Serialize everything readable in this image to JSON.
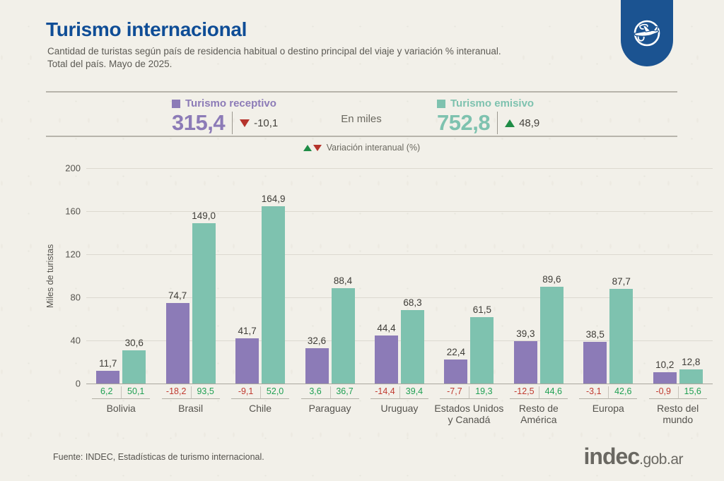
{
  "header": {
    "title": "Turismo internacional",
    "subtitle_line1": "Cantidad de turistas según país de residencia habitual o destino principal del viaje y variación % interanual.",
    "subtitle_line2": "Total del país. Mayo de 2025."
  },
  "summary": {
    "unit_label": "En miles",
    "receptivo": {
      "label": "Turismo receptivo",
      "value": "315,4",
      "variation": "-10,1",
      "direction": "down"
    },
    "emisivo": {
      "label": "Turismo emisivo",
      "value": "752,8",
      "variation": "48,9",
      "direction": "up"
    },
    "variation_note": "Variación interanual (%)"
  },
  "chart_data": {
    "type": "bar",
    "title": "Turismo internacional",
    "xlabel": "",
    "ylabel": "Miles de turistas",
    "ylim": [
      0,
      200
    ],
    "yticks": [
      0,
      40,
      80,
      120,
      160,
      200
    ],
    "grid": true,
    "legend_position": "top",
    "categories": [
      "Bolivia",
      "Brasil",
      "Chile",
      "Paraguay",
      "Uruguay",
      "Estados Unidos y Canadá",
      "Resto de América",
      "Europa",
      "Resto del mundo"
    ],
    "series": [
      {
        "name": "Turismo receptivo",
        "color": "#8c7bb7",
        "values": [
          11.7,
          74.7,
          41.7,
          32.6,
          44.4,
          22.4,
          39.3,
          38.5,
          10.2
        ],
        "value_labels": [
          "11,7",
          "74,7",
          "41,7",
          "32,6",
          "44,4",
          "22,4",
          "39,3",
          "38,5",
          "10,2"
        ],
        "variation_labels": [
          "6,2",
          "-18,2",
          "-9,1",
          "3,6",
          "-14,4",
          "-7,7",
          "-12,5",
          "-3,1",
          "-0,9"
        ]
      },
      {
        "name": "Turismo emisivo",
        "color": "#7ec2af",
        "values": [
          30.6,
          149.0,
          164.9,
          88.4,
          68.3,
          61.5,
          89.6,
          87.7,
          12.8
        ],
        "value_labels": [
          "30,6",
          "149,0",
          "164,9",
          "88,4",
          "68,3",
          "61,5",
          "89,6",
          "87,7",
          "12,8"
        ],
        "variation_labels": [
          "50,1",
          "93,5",
          "52,0",
          "36,7",
          "39,4",
          "19,3",
          "44,6",
          "42,6",
          "15,6"
        ]
      }
    ]
  },
  "footer": {
    "source": "Fuente: INDEC, Estadísticas de turismo internacional.",
    "logo_main": "indec",
    "logo_suffix": ".gob.ar"
  },
  "colors": {
    "background": "#f2f0e9",
    "title_blue": "#0f4d96",
    "badge_blue": "#1b5391",
    "receptivo_purple": "#8c7bb7",
    "emisivo_teal": "#7ec2af",
    "positive_green": "#1fa053",
    "negative_red": "#c03a30",
    "text_gray": "#55534e"
  }
}
